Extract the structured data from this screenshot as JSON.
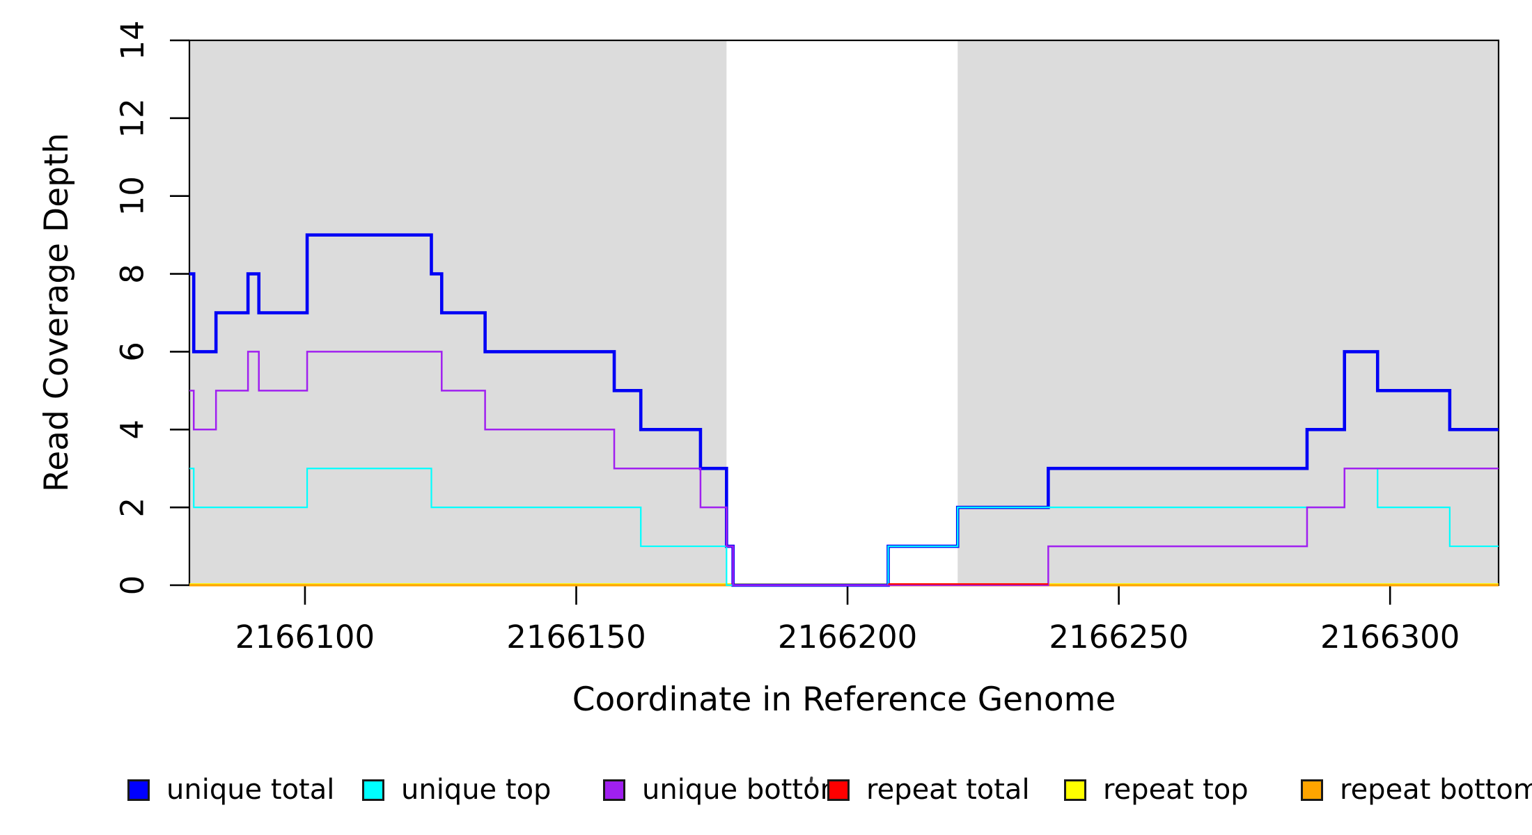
{
  "chart_data": {
    "type": "line",
    "step": true,
    "xlabel": "Coordinate in Reference Genome",
    "ylabel": "Read Coverage Depth",
    "xlim": [
      2166078.7,
      2166320.0
    ],
    "ylim": [
      0,
      14
    ],
    "x_ticks": [
      2166100,
      2166150,
      2166200,
      2166250,
      2166300
    ],
    "y_ticks": [
      0,
      2,
      4,
      6,
      8,
      10,
      12,
      14
    ],
    "grid": false,
    "legend_position": "bottom",
    "shading_color": "#DCDCDC",
    "frame_color": "#000000",
    "shaded_regions": [
      {
        "name": "left-shaded-region",
        "from": 2166078.7,
        "to": 2166177.7
      },
      {
        "name": "right-shaded-region",
        "from": 2166220.3,
        "to": 2166320.0
      }
    ],
    "series": [
      {
        "name": "repeat total",
        "color": "#FF0000",
        "width": 2.2,
        "dy": 0,
        "segments": [
          [
            2166078.7,
            2166320.0,
            0
          ]
        ]
      },
      {
        "name": "repeat top",
        "color": "#FFFF00",
        "width": 2.5,
        "dy": -1.5,
        "segments": [
          [
            2166078.7,
            2166320.0,
            0
          ]
        ]
      },
      {
        "name": "repeat bottom",
        "color": "#FFA500",
        "width": 3.2,
        "dy": 0,
        "segments": [
          [
            2166078.7,
            2166320.0,
            0
          ]
        ]
      },
      {
        "name": "unique total",
        "color": "#0000F5",
        "width": 4.6,
        "dy": 0,
        "segments": [
          [
            2166078.7,
            2166079.5,
            8
          ],
          [
            2166079.5,
            2166083.6,
            6
          ],
          [
            2166083.6,
            2166089.5,
            7
          ],
          [
            2166089.5,
            2166091.5,
            8
          ],
          [
            2166091.5,
            2166100.4,
            7
          ],
          [
            2166100.4,
            2166123.3,
            9
          ],
          [
            2166123.3,
            2166125.2,
            8
          ],
          [
            2166125.2,
            2166133.2,
            7
          ],
          [
            2166133.2,
            2166157.0,
            6
          ],
          [
            2166157.0,
            2166161.9,
            5
          ],
          [
            2166161.9,
            2166172.9,
            4
          ],
          [
            2166172.9,
            2166177.7,
            3
          ],
          [
            2166177.7,
            2166178.9,
            1
          ],
          [
            2166178.9,
            2166207.5,
            0
          ],
          [
            2166207.5,
            2166220.3,
            1
          ],
          [
            2166220.3,
            2166237.0,
            2
          ],
          [
            2166237.0,
            2166284.7,
            3
          ],
          [
            2166284.7,
            2166291.6,
            4
          ],
          [
            2166291.6,
            2166297.7,
            6
          ],
          [
            2166297.7,
            2166311.0,
            5
          ],
          [
            2166311.0,
            2166320.0,
            4
          ]
        ]
      },
      {
        "name": "unique top",
        "color": "#00FFFF",
        "width": 2.2,
        "dy": 0,
        "segments": [
          [
            2166078.7,
            2166079.5,
            3
          ],
          [
            2166079.5,
            2166100.4,
            2
          ],
          [
            2166100.4,
            2166123.3,
            3
          ],
          [
            2166123.3,
            2166161.9,
            2
          ],
          [
            2166161.9,
            2166177.7,
            1
          ],
          [
            2166177.7,
            2166207.5,
            0
          ],
          [
            2166207.5,
            2166220.3,
            1
          ],
          [
            2166220.3,
            2166291.6,
            2
          ],
          [
            2166291.6,
            2166297.7,
            3
          ],
          [
            2166297.7,
            2166311.0,
            2
          ],
          [
            2166311.0,
            2166320.0,
            1
          ]
        ]
      },
      {
        "name": "unique bottom",
        "color": "#A020F0",
        "width": 2.5,
        "dy": 0,
        "segments": [
          [
            2166078.7,
            2166079.5,
            5
          ],
          [
            2166079.5,
            2166083.6,
            4
          ],
          [
            2166083.6,
            2166089.5,
            5
          ],
          [
            2166089.5,
            2166091.5,
            6
          ],
          [
            2166091.5,
            2166100.4,
            5
          ],
          [
            2166100.4,
            2166125.2,
            6
          ],
          [
            2166125.2,
            2166133.2,
            5
          ],
          [
            2166133.2,
            2166157.0,
            4
          ],
          [
            2166157.0,
            2166172.9,
            3
          ],
          [
            2166172.9,
            2166177.7,
            2
          ],
          [
            2166177.7,
            2166178.9,
            1
          ],
          [
            2166178.9,
            2166237.0,
            0
          ],
          [
            2166237.0,
            2166284.7,
            1
          ],
          [
            2166284.7,
            2166291.6,
            2
          ],
          [
            2166291.6,
            2166320.0,
            3
          ]
        ]
      }
    ],
    "overlays": [
      {
        "name": "repeat-total-visible-at-zero",
        "color": "#FF0000",
        "width": 2.2,
        "dy": -1.6,
        "segments": [
          [
            2166207.5,
            2166237.0,
            0
          ]
        ]
      }
    ]
  },
  "legend": {
    "items": [
      {
        "label": "unique total",
        "color": "#0000FF"
      },
      {
        "label": "unique top",
        "color": "#00FFFF"
      },
      {
        "label": "unique bottom",
        "color": "#A020F0"
      },
      {
        "label": "repeat total",
        "color": "#FF0000"
      },
      {
        "label": "repeat top",
        "color": "#FFFF00"
      },
      {
        "label": "repeat bottom",
        "color": "#FFA500"
      }
    ]
  }
}
